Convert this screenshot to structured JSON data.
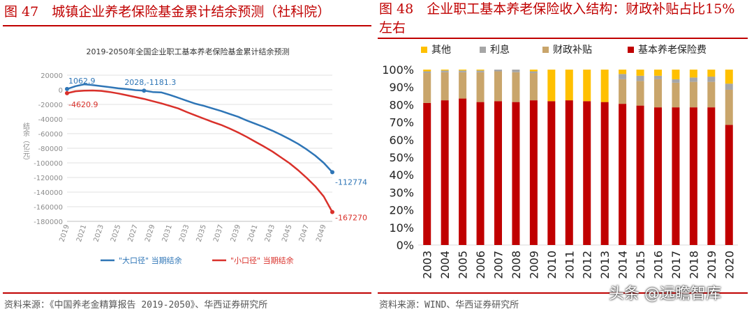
{
  "figures": {
    "left_title": "图 47　城镇企业养老保险基金累计结余预测（社科院）",
    "right_title": "图 48　企业职工基本养老保险收入结构：财政补贴占比15%左右",
    "left_source": "资料来源：《中国养老金精算报告 2019-2050》、华西证券研究所",
    "right_source": "资料来源：WIND、华西证券研究所"
  },
  "watermark": "头条 @远瞻智库",
  "colors": {
    "accent": "#c00000",
    "blue": "#2e75b6",
    "red": "#d9302a",
    "yellow": "#ffc000",
    "grey": "#a6a6a6",
    "tan": "#c9a56b",
    "darkred": "#c00000"
  },
  "chart_data": [
    {
      "type": "line",
      "title": "2019-2050年全国企业职工基本养老保险基金累计结余预测",
      "ylabel": "结余（亿元）",
      "ylim": [
        -180000,
        20000
      ],
      "yticks": [
        20000,
        0,
        -20000,
        -40000,
        -60000,
        -80000,
        -100000,
        -120000,
        -140000,
        -160000,
        -180000
      ],
      "x": [
        2019,
        2020,
        2021,
        2022,
        2023,
        2024,
        2025,
        2026,
        2027,
        2028,
        2029,
        2030,
        2031,
        2032,
        2033,
        2034,
        2035,
        2036,
        2037,
        2038,
        2039,
        2040,
        2041,
        2042,
        2043,
        2044,
        2045,
        2046,
        2047,
        2048,
        2049,
        2050
      ],
      "xticks": [
        2019,
        2021,
        2023,
        2025,
        2027,
        2029,
        2031,
        2033,
        2035,
        2037,
        2039,
        2041,
        2043,
        2045,
        2047,
        2049
      ],
      "grid": true,
      "legend": "bottom",
      "series": [
        {
          "name": "\"大口径\" 当期结余",
          "color": "#2e75b6",
          "values": [
            1062.9,
            5000,
            7500,
            6500,
            5000,
            3500,
            2000,
            1000,
            -500,
            -1181.3,
            -3000,
            -3500,
            -7000,
            -11000,
            -15000,
            -19000,
            -22000,
            -25500,
            -29000,
            -33000,
            -37000,
            -42000,
            -46500,
            -51000,
            -56000,
            -61500,
            -67500,
            -74000,
            -81500,
            -90000,
            -100000,
            -112774
          ]
        },
        {
          "name": "\"小口径\" 当期结余",
          "color": "#d9302a",
          "values": [
            -4620.9,
            -2000,
            -1200,
            -1000,
            -1500,
            -3000,
            -5000,
            -7500,
            -10000,
            -12500,
            -15500,
            -18500,
            -22000,
            -25500,
            -30500,
            -35000,
            -39500,
            -44000,
            -48000,
            -53000,
            -58500,
            -64500,
            -71000,
            -77500,
            -84500,
            -92500,
            -100500,
            -110000,
            -120500,
            -132000,
            -146000,
            -167270
          ]
        }
      ],
      "annotations": [
        "1062.9",
        "-4620.9",
        "2028,-1181.3",
        "-112774",
        "-167270"
      ]
    },
    {
      "type": "bar",
      "stacked": true,
      "categories": [
        "2003",
        "2004",
        "2005",
        "2006",
        "2007",
        "2008",
        "2009",
        "2010",
        "2011",
        "2012",
        "2013",
        "2014",
        "2015",
        "2016",
        "2017",
        "2018",
        "2019",
        "2020"
      ],
      "yticks": [
        "0%",
        "10%",
        "20%",
        "30%",
        "40%",
        "50%",
        "60%",
        "70%",
        "80%",
        "90%",
        "100%"
      ],
      "ylim": [
        0,
        100
      ],
      "legend": "top",
      "series": [
        {
          "name": "基本养老保险费",
          "color": "#c00000",
          "values": [
            81,
            82.5,
            83.5,
            81.5,
            82,
            81.5,
            82.5,
            82,
            82.5,
            82,
            81.5,
            80.5,
            79.5,
            78.5,
            78.5,
            78.5,
            78.5,
            68.5
          ]
        },
        {
          "name": "财政补贴",
          "color": "#c9a56b",
          "values": [
            17,
            16,
            15,
            17,
            17,
            17,
            15.5,
            0,
            0,
            0,
            0,
            14,
            14,
            16,
            14,
            14.5,
            14.5,
            20
          ]
        },
        {
          "name": "利息",
          "color": "#a6a6a6",
          "values": [
            1,
            1,
            1,
            1,
            1,
            1.5,
            1,
            0,
            0,
            0,
            0,
            3,
            3,
            2,
            2,
            2.5,
            3,
            3.5
          ]
        },
        {
          "name": "其他",
          "color": "#ffc000",
          "values": [
            1,
            0.5,
            0.5,
            0.5,
            0,
            0,
            1,
            18,
            17.5,
            18,
            18.5,
            2.5,
            3.5,
            3.5,
            5.5,
            4.5,
            4,
            8
          ]
        }
      ]
    }
  ]
}
